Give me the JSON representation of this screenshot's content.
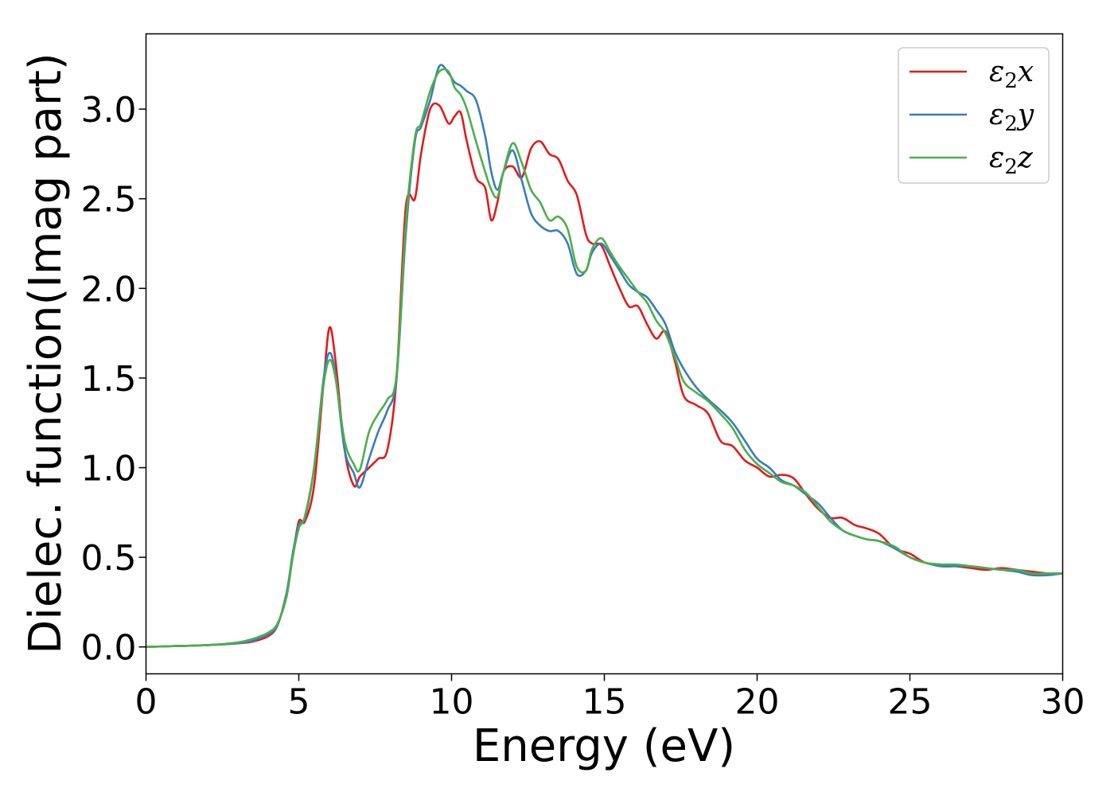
{
  "chart_data": {
    "type": "line",
    "xlabel": "Energy (eV)",
    "ylabel": "Dielec. function(Imag part)",
    "xlim": [
      0,
      30
    ],
    "ylim": [
      -0.15,
      3.42
    ],
    "xticks": [
      0,
      5,
      10,
      15,
      20,
      25,
      30
    ],
    "xtick_labels": [
      "0",
      "5",
      "10",
      "15",
      "20",
      "25",
      "30"
    ],
    "yticks": [
      0.0,
      0.5,
      1.0,
      1.5,
      2.0,
      2.5,
      3.0
    ],
    "ytick_labels": [
      "0.0",
      "0.5",
      "1.0",
      "1.5",
      "2.0",
      "2.5",
      "3.0"
    ],
    "grid": false,
    "legend_position": "top-right",
    "series": [
      {
        "name": "ε2x",
        "legend_symbol": "ε",
        "legend_sub": "2",
        "legend_suffix": "x",
        "color": "#e41a1c",
        "x": [
          0,
          1,
          2,
          3,
          3.5,
          4,
          4.3,
          4.6,
          4.8,
          5.0,
          5.2,
          5.5,
          5.8,
          6.0,
          6.2,
          6.5,
          6.8,
          7.0,
          7.3,
          7.6,
          7.9,
          8.2,
          8.5,
          8.8,
          9.0,
          9.3,
          9.6,
          9.9,
          10.1,
          10.3,
          10.5,
          10.8,
          11.1,
          11.3,
          11.5,
          11.7,
          12.0,
          12.3,
          12.6,
          12.9,
          13.2,
          13.5,
          13.8,
          14.1,
          14.4,
          14.6,
          14.9,
          15.2,
          15.5,
          15.8,
          16.1,
          16.4,
          16.7,
          17.0,
          17.3,
          17.6,
          18.0,
          18.4,
          18.8,
          19.2,
          19.6,
          20.0,
          20.4,
          20.8,
          21.2,
          21.6,
          22.0,
          22.4,
          22.8,
          23.2,
          23.6,
          24.0,
          24.5,
          25.0,
          25.5,
          26.0,
          26.5,
          27.0,
          27.5,
          28.0,
          28.5,
          29.0,
          29.5,
          30.0
        ],
        "y": [
          0.0,
          0.005,
          0.01,
          0.02,
          0.03,
          0.06,
          0.12,
          0.3,
          0.5,
          0.7,
          0.7,
          0.9,
          1.45,
          1.78,
          1.6,
          1.1,
          0.9,
          0.95,
          1.0,
          1.05,
          1.1,
          1.5,
          2.45,
          2.5,
          2.75,
          3.0,
          3.02,
          2.92,
          2.96,
          2.98,
          2.82,
          2.62,
          2.56,
          2.38,
          2.48,
          2.65,
          2.68,
          2.62,
          2.78,
          2.82,
          2.75,
          2.72,
          2.6,
          2.52,
          2.3,
          2.25,
          2.24,
          2.12,
          2.0,
          1.9,
          1.9,
          1.8,
          1.72,
          1.76,
          1.6,
          1.4,
          1.35,
          1.3,
          1.15,
          1.12,
          1.04,
          1.0,
          0.95,
          0.96,
          0.94,
          0.85,
          0.77,
          0.72,
          0.72,
          0.68,
          0.66,
          0.63,
          0.55,
          0.52,
          0.47,
          0.46,
          0.45,
          0.44,
          0.43,
          0.44,
          0.43,
          0.42,
          0.41,
          0.41
        ]
      },
      {
        "name": "ε2y",
        "legend_symbol": "ε",
        "legend_sub": "2",
        "legend_suffix": "y",
        "color": "#377eb8",
        "x": [
          0,
          1,
          2,
          3,
          3.5,
          4,
          4.3,
          4.6,
          4.8,
          5.0,
          5.2,
          5.5,
          5.8,
          6.0,
          6.2,
          6.5,
          6.8,
          7.0,
          7.3,
          7.6,
          7.9,
          8.2,
          8.5,
          8.8,
          9.0,
          9.3,
          9.6,
          9.9,
          10.1,
          10.3,
          10.5,
          10.8,
          11.1,
          11.3,
          11.5,
          11.7,
          12.0,
          12.3,
          12.6,
          12.9,
          13.2,
          13.5,
          13.8,
          14.1,
          14.4,
          14.6,
          14.9,
          15.2,
          15.5,
          15.8,
          16.1,
          16.4,
          16.7,
          17.0,
          17.3,
          17.6,
          18.0,
          18.4,
          18.8,
          19.2,
          19.6,
          20.0,
          20.4,
          20.8,
          21.2,
          21.6,
          22.0,
          22.4,
          22.8,
          23.2,
          23.6,
          24.0,
          24.5,
          25.0,
          25.5,
          26.0,
          26.5,
          27.0,
          27.5,
          28.0,
          28.5,
          29.0,
          29.5,
          30.0
        ],
        "y": [
          0.0,
          0.005,
          0.01,
          0.02,
          0.035,
          0.07,
          0.12,
          0.3,
          0.52,
          0.68,
          0.72,
          1.0,
          1.48,
          1.64,
          1.52,
          1.1,
          0.97,
          0.89,
          1.05,
          1.2,
          1.32,
          1.5,
          2.3,
          2.82,
          2.9,
          3.05,
          3.24,
          3.2,
          3.15,
          3.13,
          3.1,
          3.05,
          2.85,
          2.65,
          2.55,
          2.65,
          2.77,
          2.6,
          2.42,
          2.35,
          2.32,
          2.32,
          2.25,
          2.08,
          2.1,
          2.2,
          2.25,
          2.18,
          2.1,
          2.02,
          1.98,
          1.95,
          1.88,
          1.8,
          1.65,
          1.55,
          1.45,
          1.38,
          1.32,
          1.25,
          1.15,
          1.05,
          1.0,
          0.93,
          0.9,
          0.85,
          0.8,
          0.72,
          0.65,
          0.62,
          0.6,
          0.59,
          0.55,
          0.5,
          0.47,
          0.45,
          0.45,
          0.45,
          0.44,
          0.43,
          0.42,
          0.4,
          0.4,
          0.41
        ]
      },
      {
        "name": "ε2z",
        "legend_symbol": "ε",
        "legend_sub": "2",
        "legend_suffix": "z",
        "color": "#4daf4a",
        "x": [
          0,
          1,
          2,
          3,
          3.5,
          4,
          4.3,
          4.6,
          4.8,
          5.0,
          5.2,
          5.5,
          5.8,
          6.0,
          6.2,
          6.5,
          6.8,
          7.0,
          7.3,
          7.6,
          7.9,
          8.2,
          8.5,
          8.8,
          9.0,
          9.3,
          9.6,
          9.9,
          10.1,
          10.3,
          10.5,
          10.8,
          11.1,
          11.3,
          11.5,
          11.7,
          12.0,
          12.3,
          12.6,
          12.9,
          13.2,
          13.5,
          13.8,
          14.1,
          14.4,
          14.6,
          14.9,
          15.2,
          15.5,
          15.8,
          16.1,
          16.4,
          16.7,
          17.0,
          17.3,
          17.6,
          18.0,
          18.4,
          18.8,
          19.2,
          19.6,
          20.0,
          20.4,
          20.8,
          21.2,
          21.6,
          22.0,
          22.4,
          22.8,
          23.2,
          23.6,
          24.0,
          24.5,
          25.0,
          25.5,
          26.0,
          26.5,
          27.0,
          27.5,
          28.0,
          28.5,
          29.0,
          29.5,
          30.0
        ],
        "y": [
          0.0,
          0.005,
          0.01,
          0.025,
          0.045,
          0.08,
          0.13,
          0.28,
          0.5,
          0.66,
          0.73,
          1.0,
          1.45,
          1.6,
          1.5,
          1.15,
          1.02,
          0.99,
          1.2,
          1.3,
          1.38,
          1.52,
          2.35,
          2.84,
          2.92,
          3.1,
          3.21,
          3.21,
          3.12,
          3.08,
          3.0,
          2.82,
          2.65,
          2.55,
          2.51,
          2.65,
          2.81,
          2.7,
          2.55,
          2.48,
          2.38,
          2.4,
          2.33,
          2.12,
          2.1,
          2.22,
          2.28,
          2.2,
          2.12,
          2.05,
          1.98,
          1.92,
          1.82,
          1.75,
          1.62,
          1.48,
          1.42,
          1.37,
          1.3,
          1.22,
          1.1,
          1.02,
          0.97,
          0.92,
          0.9,
          0.86,
          0.78,
          0.7,
          0.65,
          0.62,
          0.6,
          0.59,
          0.56,
          0.5,
          0.47,
          0.46,
          0.46,
          0.45,
          0.44,
          0.43,
          0.43,
          0.41,
          0.41,
          0.41
        ]
      }
    ]
  }
}
